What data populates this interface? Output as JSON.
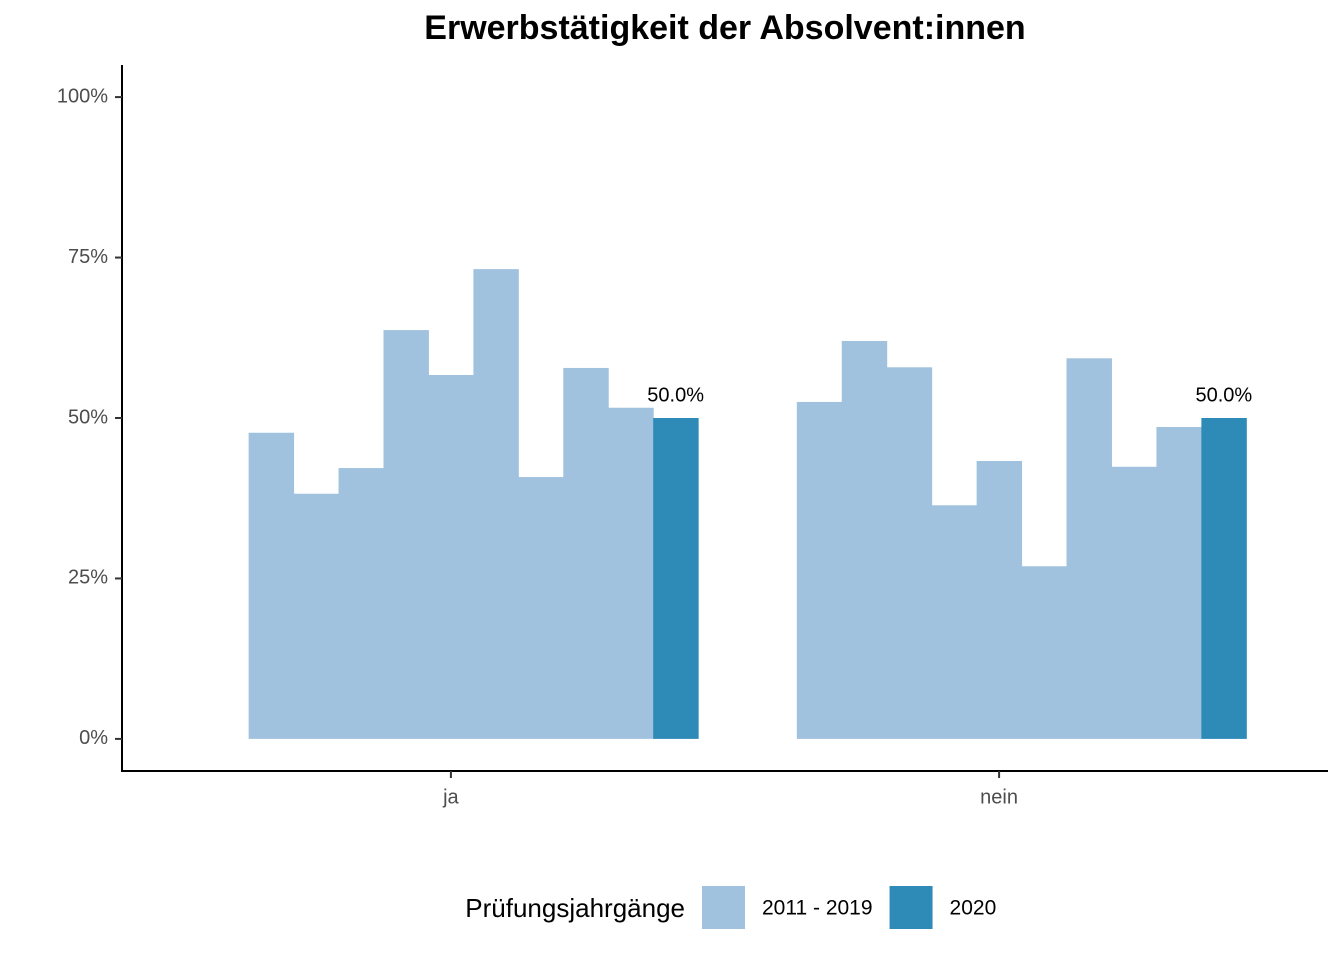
{
  "chart_data": {
    "type": "grouped-bar",
    "title": "Erwerbstätigkeit der Absolvent:innen",
    "categories": [
      "ja",
      "nein"
    ],
    "series": [
      {
        "name": "2011 - 2019",
        "color": "#a1c2de",
        "values": [
          [
            47.7,
            38.2,
            42.2,
            63.7,
            56.7,
            73.2,
            40.8,
            57.8,
            51.6
          ],
          [
            52.5,
            62.0,
            57.9,
            36.4,
            43.3,
            26.9,
            59.3,
            42.4,
            48.6
          ]
        ]
      },
      {
        "name": "2020",
        "color": "#2e8bb8",
        "values": [
          50,
          50
        ],
        "value_labels": [
          "50.0%",
          "50.0%"
        ]
      }
    ],
    "ylim": [
      -5,
      105
    ],
    "yticks": [
      {
        "value": 0,
        "label": "0%"
      },
      {
        "value": 25,
        "label": "25%"
      },
      {
        "value": 50,
        "label": "50%"
      },
      {
        "value": 75,
        "label": "75%"
      },
      {
        "value": 100,
        "label": "100%"
      }
    ],
    "legend_title": "Prüfungsjahrgänge",
    "legend_position": "bottom",
    "grid": false
  }
}
